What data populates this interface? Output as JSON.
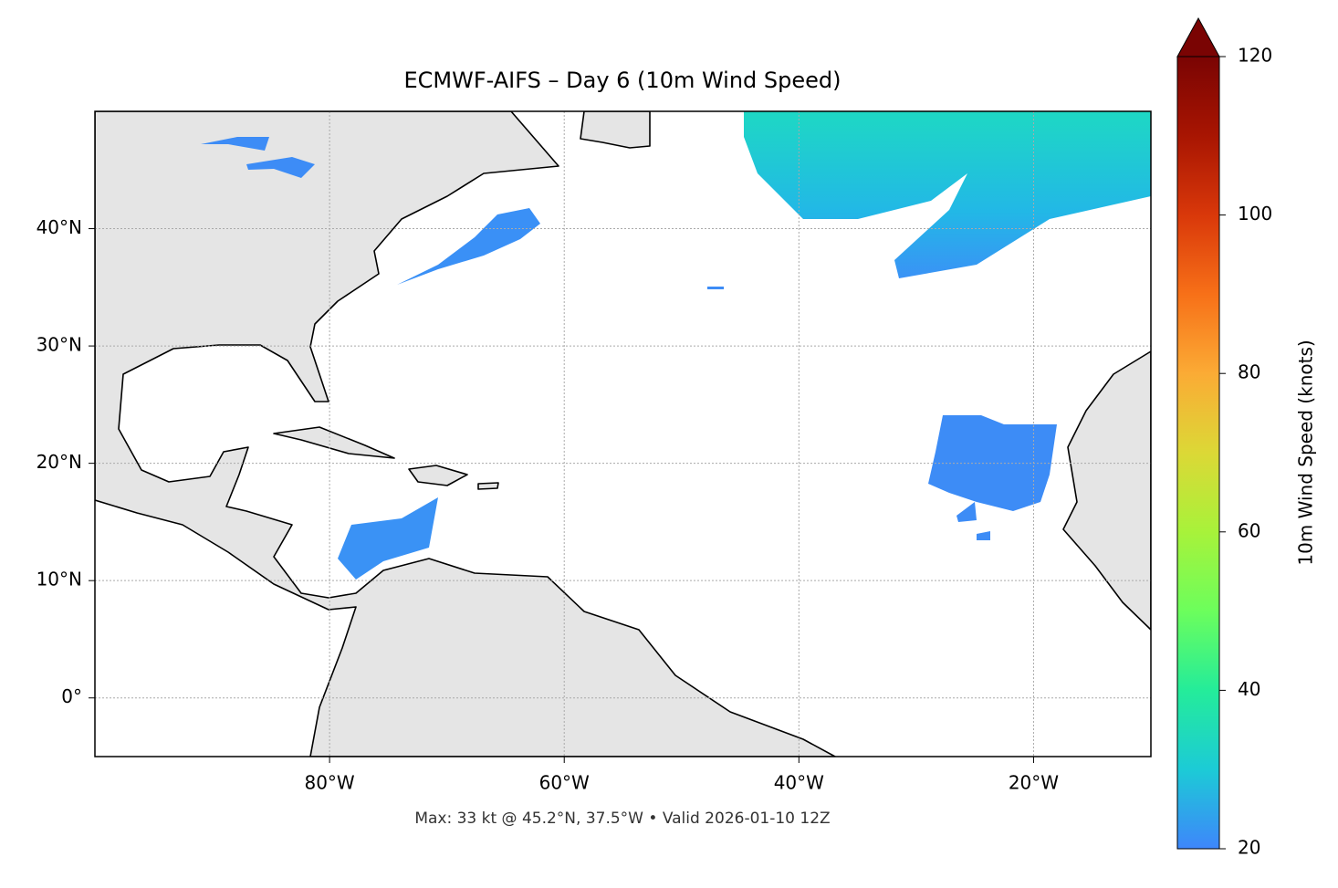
{
  "chart_data": {
    "type": "map",
    "title": "ECMWF-AIFS – Day 6 (10m Wind Speed)",
    "xlim": [
      -100,
      -10
    ],
    "ylim": [
      -5,
      50
    ],
    "xticks": [
      {
        "value": -80,
        "label": "80°W"
      },
      {
        "value": -60,
        "label": "60°W"
      },
      {
        "value": -40,
        "label": "40°W"
      },
      {
        "value": -20,
        "label": "20°W"
      }
    ],
    "yticks": [
      {
        "value": 0,
        "label": "0°"
      },
      {
        "value": 10,
        "label": "10°N"
      },
      {
        "value": 20,
        "label": "20°N"
      },
      {
        "value": 30,
        "label": "30°N"
      },
      {
        "value": 40,
        "label": "40°N"
      }
    ],
    "grid": true,
    "colorbar": {
      "label": "10m Wind Speed (knots)",
      "lim": [
        20,
        120
      ],
      "ticks": [
        20,
        40,
        60,
        80,
        100,
        120
      ],
      "colormap": [
        "#3e86fb",
        "#1ccbd6",
        "#24ec9a",
        "#6cfe5c",
        "#a8f23a",
        "#dcd836",
        "#fbab35",
        "#f77018",
        "#d9380a",
        "#a81502",
        "#7a0403"
      ],
      "extend": "max"
    },
    "footnote": "Max: 33 kt @ 45.2°N, 37.5°W • Valid 2026-01-10 12Z"
  }
}
